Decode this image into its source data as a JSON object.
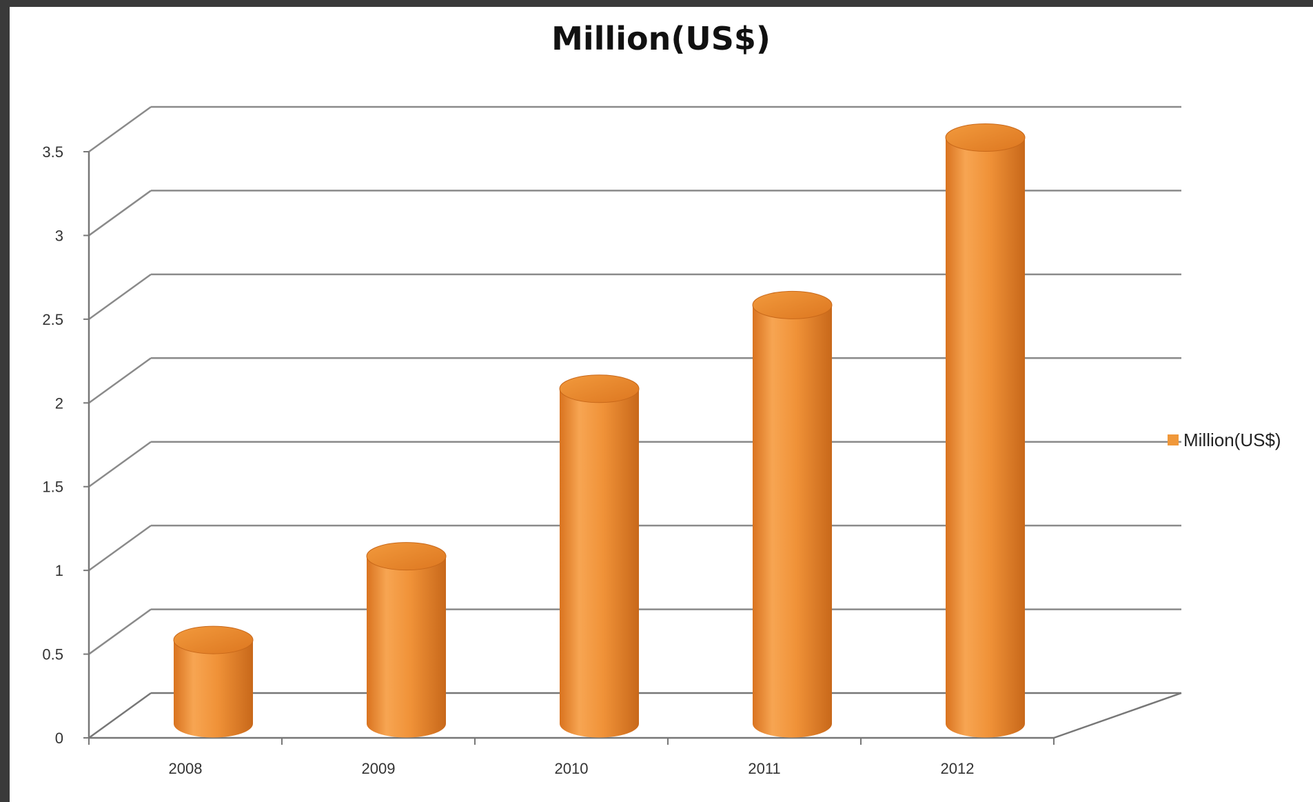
{
  "chart_data": {
    "type": "bar",
    "title": "Million(US$)",
    "xlabel": "",
    "ylabel": "",
    "categories": [
      "2008",
      "2009",
      "2010",
      "2011",
      "2012"
    ],
    "series": [
      {
        "name": "Million(US$)",
        "values": [
          0.5,
          1.0,
          2.0,
          2.5,
          3.5
        ]
      }
    ],
    "ylim": [
      0,
      3.5
    ],
    "yticks": [
      "0",
      "0.5",
      "1",
      "1.5",
      "2",
      "2.5",
      "3",
      "3.5"
    ],
    "grid": true,
    "legend": "right",
    "style": "3d-cylinder",
    "colors": {
      "bar": "#f0983a",
      "bar_dark": "#c8681a",
      "bar_light": "#f8b66a",
      "top": "#e87f22",
      "grid": "#8a8a8a",
      "axis": "#777777"
    }
  }
}
